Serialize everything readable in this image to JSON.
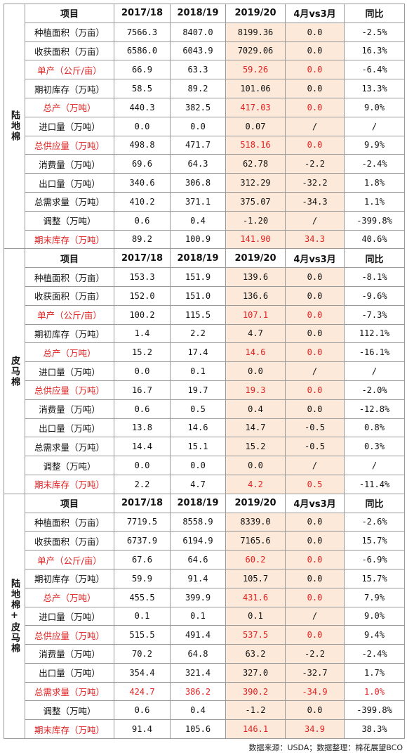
{
  "header": [
    "项目",
    "2017/18",
    "2018/19",
    "2019/20",
    "4月vs3月",
    "同比"
  ],
  "sections": [
    {
      "group": "陆地棉",
      "rows": [
        [
          "种植面积（万亩）",
          "7566.3",
          "8407.0",
          "8199.36",
          "0.0",
          "-2.5%"
        ],
        [
          "收获面积（万亩）",
          "6586.0",
          "6043.9",
          "7029.06",
          "0.0",
          "16.3%"
        ],
        [
          "单产（公斤/亩）",
          "66.9",
          "63.3",
          "59.26",
          "0.0",
          "-6.4%"
        ],
        [
          "期初库存（万吨）",
          "58.5",
          "89.2",
          "101.06",
          "0.0",
          "13.3%"
        ],
        [
          "总产（万吨）",
          "440.3",
          "382.5",
          "417.03",
          "0.0",
          "9.0%"
        ],
        [
          "进口量（万吨）",
          "0.0",
          "0.0",
          "0.07",
          "/",
          "/"
        ],
        [
          "总供应量（万吨）",
          "498.8",
          "471.7",
          "518.16",
          "0.0",
          "9.9%"
        ],
        [
          "消费量（万吨）",
          "69.6",
          "64.3",
          "62.78",
          "-2.2",
          "-2.4%"
        ],
        [
          "出口量（万吨）",
          "340.6",
          "306.8",
          "312.29",
          "-32.2",
          "1.8%"
        ],
        [
          "总需求量（万吨）",
          "410.2",
          "371.1",
          "375.07",
          "-34.3",
          "1.1%"
        ],
        [
          "调整（万吨）",
          "0.6",
          "0.4",
          "-1.20",
          "/",
          "-399.8%"
        ],
        [
          "期末库存（万吨）",
          "89.2",
          "100.9",
          "141.90",
          "34.3",
          "40.6%"
        ]
      ]
    },
    {
      "group": "皮马棉",
      "rows": [
        [
          "种植面积（万亩）",
          "153.3",
          "151.9",
          "139.6",
          "0.0",
          "-8.1%"
        ],
        [
          "收获面积（万亩）",
          "152.0",
          "151.0",
          "136.6",
          "0.0",
          "-9.6%"
        ],
        [
          "单产（公斤/亩）",
          "100.2",
          "115.5",
          "107.1",
          "0.0",
          "-7.3%"
        ],
        [
          "期初库存（万吨）",
          "1.4",
          "2.2",
          "4.7",
          "0.0",
          "112.1%"
        ],
        [
          "总产（万吨）",
          "15.2",
          "17.4",
          "14.6",
          "0.0",
          "-16.1%"
        ],
        [
          "进口量（万吨）",
          "0.0",
          "0.1",
          "0.0",
          "/",
          "/"
        ],
        [
          "总供应量（万吨）",
          "16.7",
          "19.7",
          "19.3",
          "0.0",
          "-2.0%"
        ],
        [
          "消费量（万吨）",
          "0.6",
          "0.5",
          "0.4",
          "0.0",
          "-12.8%"
        ],
        [
          "出口量（万吨）",
          "13.8",
          "14.6",
          "14.7",
          "-0.5",
          "0.8%"
        ],
        [
          "总需求量（万吨）",
          "14.4",
          "15.1",
          "15.2",
          "-0.5",
          "0.3%"
        ],
        [
          "调整（万吨）",
          "0.0",
          "0.0",
          "0.0",
          "/",
          "/"
        ],
        [
          "期末库存（万吨）",
          "2.2",
          "4.7",
          "4.2",
          "0.5",
          "-11.4%"
        ]
      ]
    },
    {
      "group": "陆地棉+皮马棉",
      "rows": [
        [
          "种植面积（万亩）",
          "7719.5",
          "8558.9",
          "8339.0",
          "0.0",
          "-2.6%"
        ],
        [
          "收获面积（万亩）",
          "6737.9",
          "6194.9",
          "7165.6",
          "0.0",
          "15.7%"
        ],
        [
          "单产（公斤/亩）",
          "67.6",
          "64.6",
          "60.2",
          "0.0",
          "-6.9%"
        ],
        [
          "期初库存（万吨）",
          "59.9",
          "91.4",
          "105.7",
          "0.0",
          "15.7%"
        ],
        [
          "总产（万吨）",
          "455.5",
          "399.9",
          "431.6",
          "0.0",
          "7.9%"
        ],
        [
          "进口量（万吨）",
          "0.1",
          "0.1",
          "0.1",
          "/",
          "9.0%"
        ],
        [
          "总供应量（万吨）",
          "515.5",
          "491.4",
          "537.5",
          "0.0",
          "9.4%"
        ],
        [
          "消费量（万吨）",
          "70.2",
          "64.8",
          "63.2",
          "-2.2",
          "-2.4%"
        ],
        [
          "出口量（万吨）",
          "354.4",
          "321.4",
          "327.0",
          "-32.7",
          "1.7%"
        ],
        [
          "总需求量（万吨）",
          "424.7",
          "386.2",
          "390.2",
          "-34.9",
          "1.0%"
        ],
        [
          "调整（万吨）",
          "0.6",
          "0.4",
          "-1.2",
          "0.0",
          "-399.8%"
        ],
        [
          "期末库存（万吨）",
          "91.4",
          "105.6",
          "146.1",
          "34.9",
          "38.3%"
        ]
      ]
    }
  ],
  "source": "数据来源：USDA；数据整理：棉花展望BCO"
}
